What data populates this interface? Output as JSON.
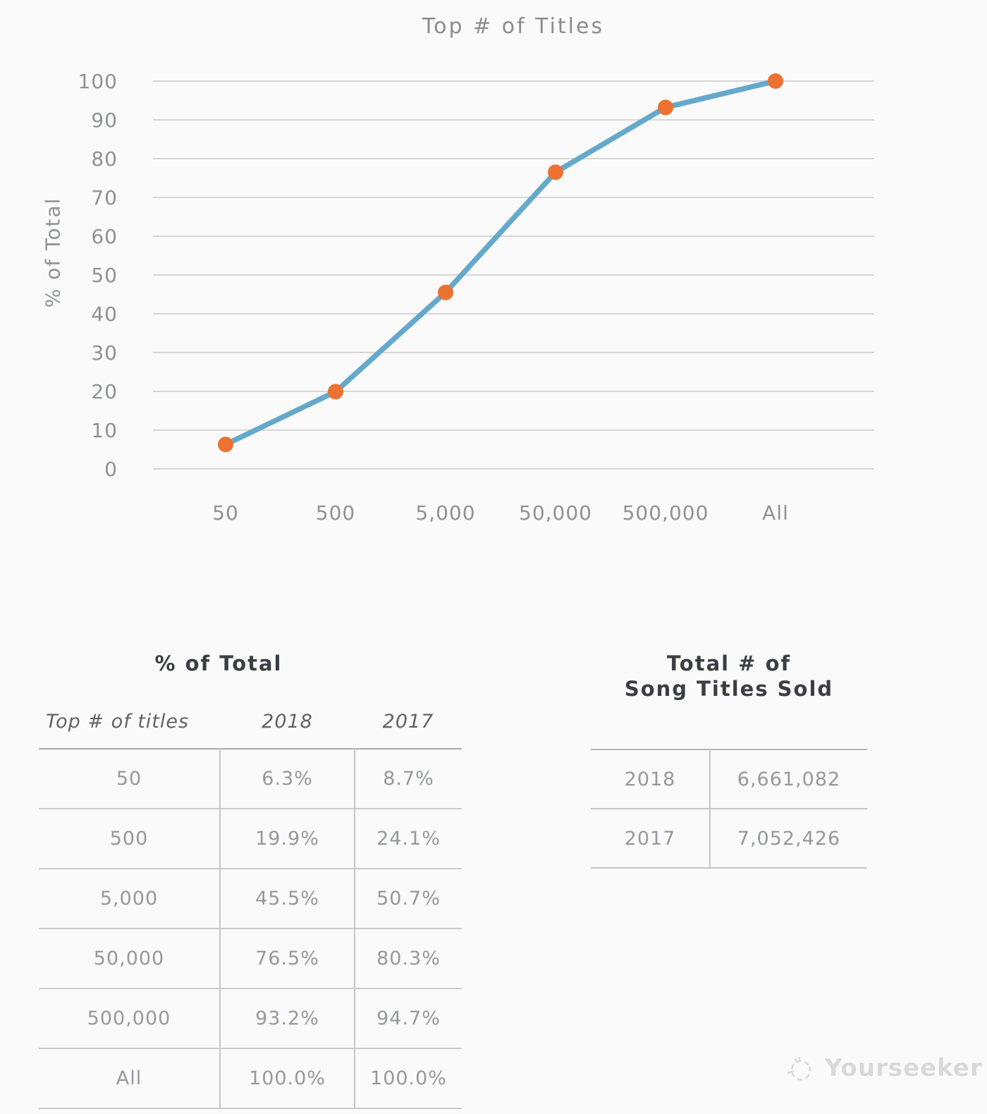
{
  "chart_data": {
    "type": "line",
    "title": "Top # of Titles",
    "ylabel": "% of Total",
    "categories": [
      "50",
      "500",
      "5,000",
      "50,000",
      "500,000",
      "All"
    ],
    "series": [
      {
        "name": "2018",
        "values": [
          6.3,
          19.9,
          45.5,
          76.5,
          93.2,
          100.0
        ]
      }
    ],
    "ylim": [
      0,
      100
    ],
    "ytick_step": 10,
    "grid": true,
    "legend_position": "none",
    "colors": {
      "line": "#64A9CB",
      "marker": "#ED7130",
      "gridline": "#D6D6D6",
      "tick_text": "#8F9194"
    }
  },
  "pct_table": {
    "title": "% of Total",
    "columns": [
      "Top # of titles",
      "2018",
      "2017"
    ],
    "rows": [
      [
        "50",
        "6.3%",
        "8.7%"
      ],
      [
        "500",
        "19.9%",
        "24.1%"
      ],
      [
        "5,000",
        "45.5%",
        "50.7%"
      ],
      [
        "50,000",
        "76.5%",
        "80.3%"
      ],
      [
        "500,000",
        "93.2%",
        "94.7%"
      ],
      [
        "All",
        "100.0%",
        "100.0%"
      ]
    ]
  },
  "totals_table": {
    "title_line1": "Total # of",
    "title_line2": "Song Titles Sold",
    "rows": [
      [
        "2018",
        "6,661,082"
      ],
      [
        "2017",
        "7,052,426"
      ]
    ]
  },
  "watermark": {
    "text": "Yourseeker"
  }
}
